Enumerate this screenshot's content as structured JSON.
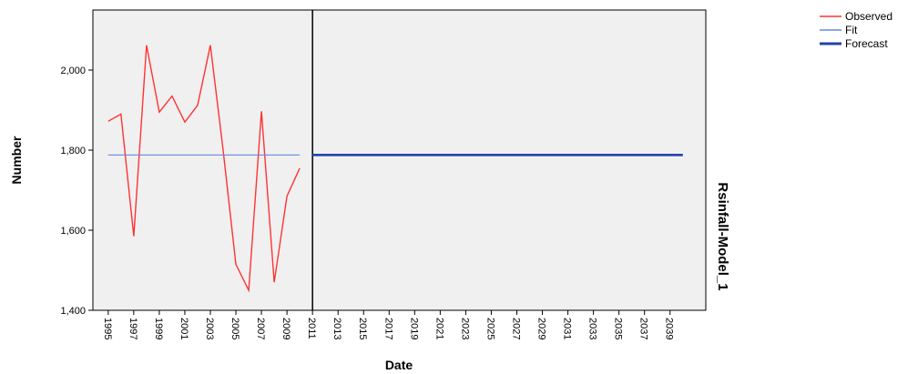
{
  "chart_data": {
    "type": "line",
    "xlabel": "Date",
    "ylabel": "Number",
    "panel_label": "Rsinfall-Model_1",
    "ylim": [
      1400,
      2150
    ],
    "y_ticks": [
      1400,
      1600,
      1800,
      2000
    ],
    "y_tick_labels": [
      "1,400",
      "1,600",
      "1,800",
      "2,000"
    ],
    "xlim": [
      1993.8,
      2041.8
    ],
    "x_ticks": [
      1995,
      1997,
      1999,
      2001,
      2003,
      2005,
      2007,
      2009,
      2011,
      2013,
      2015,
      2017,
      2019,
      2021,
      2023,
      2025,
      2027,
      2029,
      2031,
      2033,
      2035,
      2037,
      2039
    ],
    "forecast_start": 2011,
    "legend": {
      "position": "top-right"
    },
    "grid": false,
    "series": [
      {
        "name": "Observed",
        "color": "#ff3333",
        "x": [
          1995,
          1996,
          1997,
          1998,
          1999,
          2000,
          2001,
          2002,
          2003,
          2004,
          2005,
          2006,
          2007,
          2008,
          2009,
          2010
        ],
        "y": [
          1872,
          1890,
          1585,
          2062,
          1895,
          1935,
          1870,
          1912,
          2062,
          1800,
          1515,
          1450,
          1897,
          1470,
          1685,
          1755
        ]
      },
      {
        "name": "Fit",
        "color": "#6688dd",
        "x": [
          1995,
          2010
        ],
        "y": [
          1788,
          1788
        ]
      },
      {
        "name": "Forecast",
        "color": "#2244aa",
        "x": [
          2011,
          2040
        ],
        "y": [
          1788,
          1788
        ]
      }
    ]
  }
}
